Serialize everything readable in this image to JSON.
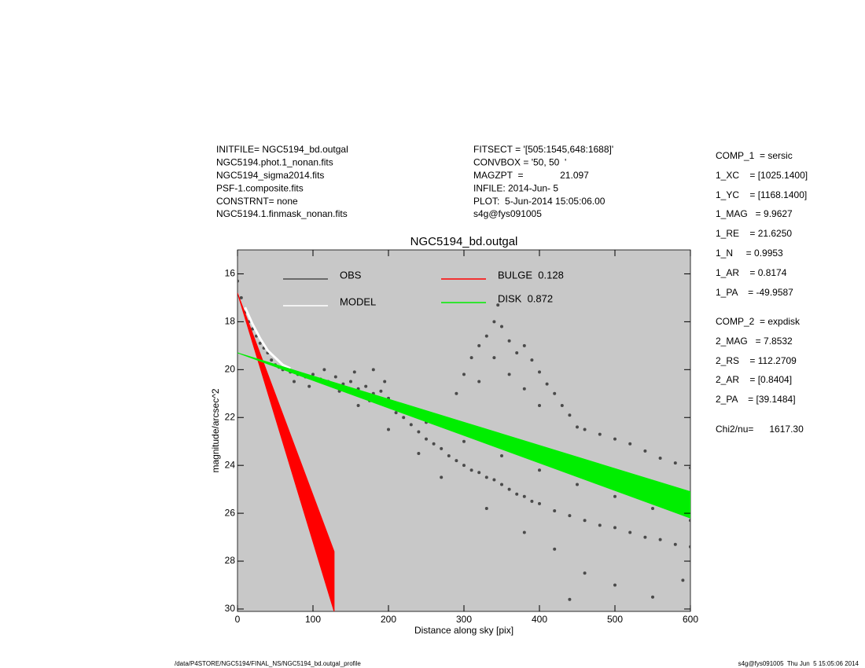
{
  "header": {
    "left": [
      "INITFILE= NGC5194_bd.outgal",
      "NGC5194.phot.1_nonan.fits",
      "NGC5194_sigma2014.fits",
      "PSF-1.composite.fits",
      "CONSTRNT= none",
      "NGC5194.1.finmask_nonan.fits"
    ],
    "middle": [
      "FITSECT = '[505:1545,648:1688]'",
      "CONVBOX = '50, 50  '",
      "MAGZPT  =              21.097",
      "INFILE: 2014-Jun- 5",
      "PLOT:  5-Jun-2014 15:05:06.00",
      "s4g@fys091005"
    ],
    "right": [
      "COMP_1  = sersic",
      "1_XC    = [1025.1400]",
      "1_YC    = [1168.1400]",
      "1_MAG   = 9.9627",
      "1_RE    = 21.6250",
      "1_N     = 0.9953",
      "1_AR    = 0.8174",
      "1_PA    = -49.9587",
      "COMP_2  = expdisk",
      "2_MAG   = 7.8532",
      "2_RS    = 112.2709",
      "2_AR    = [0.8404]",
      "2_PA    = [39.1484]",
      "Chi2/nu=      1617.30"
    ]
  },
  "footer": {
    "left": "/data/P4STORE/NGC5194/FINAL_NS/NGC5194_bd.outgal_profile",
    "right": "s4g@fys091005  Thu Jun  5 15:05:06 2014"
  },
  "chart_data": {
    "type": "scatter",
    "title": "NGC5194_bd.outgal",
    "x_label": "Distance along sky [pix]",
    "y_label": "magnitude/arcsec^2",
    "xlim": [
      0,
      600
    ],
    "ylim": [
      30.1,
      15
    ],
    "xticks": [
      0,
      100,
      200,
      300,
      400,
      500,
      600
    ],
    "yticks": [
      16,
      18,
      20,
      22,
      24,
      26,
      28,
      30
    ],
    "background": "#c8c8c8",
    "series": [
      {
        "name": "OBS",
        "color": "#4a4a4a",
        "style": "points",
        "x": [
          0,
          5,
          10,
          15,
          20,
          25,
          30,
          35,
          40,
          45,
          50,
          55,
          60,
          70,
          80,
          90,
          100,
          110,
          120,
          130,
          140,
          150,
          160,
          170,
          180,
          190,
          200,
          75,
          95,
          115,
          135,
          155,
          175,
          195,
          210,
          220,
          230,
          240,
          250,
          260,
          270,
          280,
          290,
          300,
          310,
          320,
          330,
          340,
          350,
          360,
          370,
          380,
          390,
          400,
          420,
          440,
          460,
          480,
          500,
          520,
          540,
          560,
          580,
          600,
          290,
          300,
          310,
          320,
          330,
          340,
          345,
          350,
          360,
          370,
          380,
          390,
          400,
          410,
          420,
          430,
          440,
          450,
          320,
          340,
          360,
          380,
          400,
          460,
          480,
          500,
          520,
          540,
          560,
          580,
          600,
          250,
          300,
          350,
          400,
          450,
          500,
          550,
          600,
          270,
          330,
          380,
          420,
          460,
          500,
          550,
          590,
          440,
          240,
          200,
          180,
          160
        ],
        "values": [
          16.3,
          17.0,
          17.6,
          18.0,
          18.3,
          18.6,
          18.9,
          19.1,
          19.3,
          19.6,
          19.8,
          19.9,
          20.0,
          20.1,
          20.2,
          20.3,
          20.2,
          20.4,
          20.5,
          20.3,
          20.6,
          20.5,
          20.8,
          20.7,
          21.0,
          20.9,
          21.2,
          20.5,
          20.7,
          20.0,
          20.9,
          20.1,
          21.3,
          20.5,
          21.8,
          22.0,
          22.3,
          22.6,
          22.9,
          23.1,
          23.3,
          23.6,
          23.8,
          24.0,
          24.2,
          24.3,
          24.5,
          24.6,
          24.8,
          25.0,
          25.2,
          25.3,
          25.5,
          25.6,
          25.9,
          26.1,
          26.3,
          26.5,
          26.6,
          26.8,
          27.0,
          27.1,
          27.3,
          27.4,
          21.0,
          20.2,
          19.5,
          19.0,
          18.6,
          18.0,
          17.3,
          18.2,
          18.8,
          19.3,
          19.0,
          19.6,
          20.1,
          20.6,
          21.0,
          21.5,
          21.9,
          22.4,
          20.5,
          19.5,
          20.2,
          20.8,
          21.5,
          22.5,
          22.7,
          22.9,
          23.1,
          23.4,
          23.7,
          23.9,
          24.1,
          22.2,
          23.0,
          23.6,
          24.2,
          24.8,
          25.3,
          25.8,
          26.3,
          24.5,
          25.8,
          26.8,
          27.5,
          28.5,
          29.0,
          29.5,
          28.8,
          29.6,
          23.5,
          22.5,
          20.0,
          21.5
        ]
      },
      {
        "name": "MODEL",
        "color": "#ffffff",
        "style": "line",
        "x": [
          10,
          20,
          30,
          40,
          50,
          60,
          70
        ],
        "values": [
          17.4,
          18.1,
          18.7,
          19.2,
          19.5,
          19.8,
          19.95
        ]
      },
      {
        "name": "BULGE  0.128",
        "color": "#ff0000",
        "style": "band",
        "x": [
          0,
          64,
          128
        ],
        "low": [
          16.8,
          22.2,
          27.6
        ],
        "high": [
          16.8,
          23.45,
          30.1
        ]
      },
      {
        "name": "DISK  0.872",
        "color": "#00ee00",
        "style": "band",
        "x": [
          0,
          300,
          600
        ],
        "low": [
          19.3,
          22.2,
          25.1
        ],
        "high": [
          19.3,
          22.75,
          26.2
        ]
      }
    ]
  }
}
